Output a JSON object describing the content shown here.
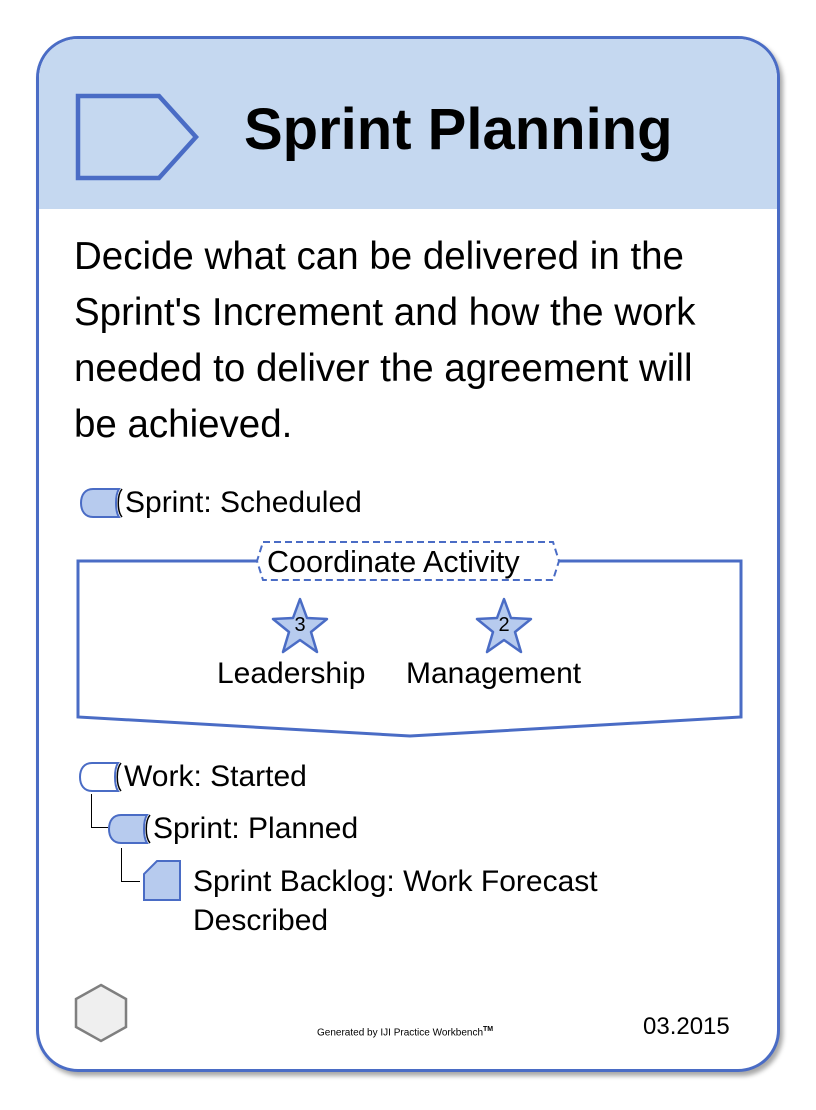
{
  "card": {
    "title": "Sprint Planning",
    "description": "Decide what can be delivered in the Sprint's Increment and how the work needed to deliver the agreement will be achieved."
  },
  "entry_criteria": [
    {
      "label": "Sprint: Scheduled",
      "icon": "alpha-state-icon"
    }
  ],
  "activity": {
    "label": "Coordinate Activity",
    "competencies": [
      {
        "number": "3",
        "label": "Leadership",
        "icon": "star-icon"
      },
      {
        "number": "2",
        "label": "Management",
        "icon": "star-icon"
      }
    ]
  },
  "results": [
    {
      "label": "Work: Started",
      "icon": "alpha-state-icon"
    },
    {
      "label": "Sprint: Planned",
      "icon": "alpha-state-icon"
    },
    {
      "label_line1": "Sprint Backlog: Work Forecast",
      "label_line2": "Described",
      "icon": "work-product-icon"
    }
  ],
  "footer": {
    "generated": "Generated by IJI Practice Workbench",
    "trademark": "TM",
    "version": "03.2015"
  },
  "colors": {
    "header_background": "#c5d8f0",
    "accent_blue": "#4a6cc5",
    "icon_fill": "#b7cbee",
    "hexagon_fill": "#efefef",
    "hexagon_stroke": "#7f7f7f"
  }
}
